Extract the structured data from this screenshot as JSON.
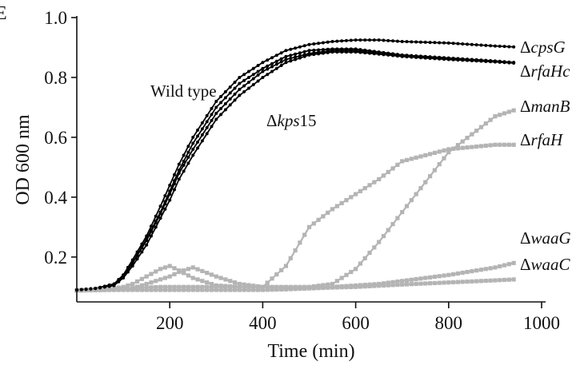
{
  "panel_label": "E",
  "chart_data": {
    "type": "line",
    "title": "",
    "xlabel": "Time (min)",
    "ylabel": "OD 600 nm",
    "xlim": [
      0,
      1000
    ],
    "ylim": [
      0.05,
      1.0
    ],
    "xticks": [
      200,
      400,
      600,
      800,
      1000
    ],
    "yticks": [
      0.2,
      0.4,
      0.6,
      0.8,
      1.0
    ],
    "x_tick_labels": [
      "200",
      "400",
      "600",
      "800",
      "1000"
    ],
    "y_tick_labels": [
      "0.2",
      "0.4",
      "0.6",
      "0.8",
      "1.0"
    ],
    "grid": false,
    "legend": "none",
    "annotations": [
      {
        "text": "Wild type",
        "x": 230,
        "y": 0.75
      },
      {
        "delta": "Δ",
        "italic": "kps",
        "plain": "15",
        "x": 480,
        "y": 0.63
      }
    ],
    "x": [
      0,
      40,
      80,
      100,
      120,
      150,
      180,
      200,
      220,
      250,
      300,
      350,
      400,
      450,
      500,
      550,
      600,
      650,
      700,
      800,
      900,
      940
    ],
    "series": [
      {
        "name": "cpsG",
        "label_delta": "Δ",
        "label_italic": "cpsG",
        "label_plain": "",
        "color": "#000000",
        "values": [
          0.09,
          0.095,
          0.11,
          0.14,
          0.19,
          0.27,
          0.37,
          0.44,
          0.51,
          0.6,
          0.72,
          0.8,
          0.85,
          0.89,
          0.91,
          0.92,
          0.925,
          0.925,
          0.92,
          0.915,
          0.905,
          0.902
        ]
      },
      {
        "name": "rfaHc",
        "label_delta": "Δ",
        "label_italic": "rfaHc",
        "label_plain": "",
        "color": "#000000",
        "values": [
          0.09,
          0.095,
          0.105,
          0.135,
          0.18,
          0.26,
          0.35,
          0.42,
          0.49,
          0.58,
          0.7,
          0.78,
          0.83,
          0.87,
          0.89,
          0.895,
          0.895,
          0.885,
          0.875,
          0.865,
          0.855,
          0.85
        ]
      },
      {
        "name": "Wild type",
        "color": "#000000",
        "values": [
          0.09,
          0.095,
          0.105,
          0.135,
          0.18,
          0.255,
          0.345,
          0.41,
          0.48,
          0.56,
          0.68,
          0.76,
          0.82,
          0.86,
          0.88,
          0.89,
          0.89,
          0.88,
          0.872,
          0.862,
          0.852,
          0.85
        ]
      },
      {
        "name": "kps15",
        "color": "#000000",
        "values": [
          0.09,
          0.095,
          0.105,
          0.13,
          0.17,
          0.24,
          0.33,
          0.39,
          0.46,
          0.54,
          0.66,
          0.74,
          0.8,
          0.85,
          0.875,
          0.885,
          0.885,
          0.878,
          0.87,
          0.86,
          0.852,
          0.848
        ]
      },
      {
        "name": "manB",
        "label_delta": "Δ",
        "label_italic": "manB",
        "label_plain": "",
        "color": "#b4b4b4",
        "values": [
          0.088,
          0.09,
          0.095,
          0.1,
          0.11,
          0.135,
          0.16,
          0.17,
          0.155,
          0.13,
          0.105,
          0.1,
          0.1,
          0.1,
          0.1,
          0.11,
          0.16,
          0.25,
          0.35,
          0.55,
          0.67,
          0.69
        ]
      },
      {
        "name": "rfaH",
        "label_delta": "Δ",
        "label_italic": "rfaH",
        "label_plain": "",
        "color": "#b4b4b4",
        "values": [
          0.088,
          0.09,
          0.092,
          0.094,
          0.096,
          0.098,
          0.1,
          0.1,
          0.1,
          0.1,
          0.1,
          0.1,
          0.1,
          0.17,
          0.3,
          0.36,
          0.41,
          0.46,
          0.52,
          0.56,
          0.575,
          0.575
        ]
      },
      {
        "name": "waaG",
        "label_delta": "Δ",
        "label_italic": "waaG",
        "label_plain": "",
        "color": "#b4b4b4",
        "values": [
          0.088,
          0.09,
          0.092,
          0.094,
          0.096,
          0.11,
          0.125,
          0.135,
          0.15,
          0.165,
          0.135,
          0.11,
          0.1,
          0.098,
          0.098,
          0.1,
          0.105,
          0.11,
          0.12,
          0.14,
          0.165,
          0.18
        ]
      },
      {
        "name": "waaC",
        "label_delta": "Δ",
        "label_italic": "waaC",
        "label_plain": "",
        "color": "#b4b4b4",
        "values": [
          0.088,
          0.089,
          0.09,
          0.09,
          0.09,
          0.09,
          0.09,
          0.09,
          0.09,
          0.09,
          0.09,
          0.09,
          0.09,
          0.092,
          0.095,
          0.098,
          0.1,
          0.104,
          0.108,
          0.115,
          0.122,
          0.125
        ]
      }
    ]
  }
}
